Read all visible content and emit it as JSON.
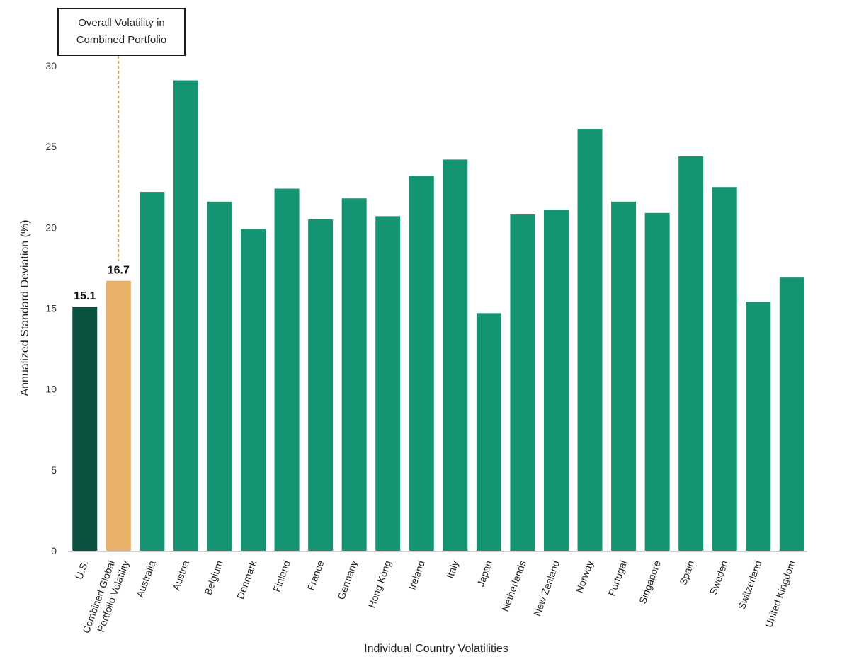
{
  "colors": {
    "us": "#0b5340",
    "combined": "#e8b169",
    "country": "#159473",
    "callout_line": "#e2a75c",
    "axis": "#cfcfcf"
  },
  "callout": {
    "text": "Overall Volatility in Combined Portfolio"
  },
  "chart_data": {
    "type": "bar",
    "title": "",
    "xlabel": "Individual Country Volatilities",
    "ylabel": "Annualized Standard Deviation (%)",
    "ylim": [
      0,
      30
    ],
    "yticks": [
      0,
      5,
      10,
      15,
      20,
      25,
      30
    ],
    "grid": false,
    "categories": [
      "U.S.",
      "Combined Global Portfolio Volatility",
      "Australia",
      "Austria",
      "Belgium",
      "Denmark",
      "Finland",
      "France",
      "Germany",
      "Hong Kong",
      "Ireland",
      "Italy",
      "Japan",
      "Netherlands",
      "New Zealand",
      "Norway",
      "Portugal",
      "Singapore",
      "Spain",
      "Sweden",
      "Switzerland",
      "United Kingdom"
    ],
    "tick_lines": [
      [
        "U.S."
      ],
      [
        "Combined Global",
        "Portfolio Volatility"
      ],
      [
        "Australia"
      ],
      [
        "Austria"
      ],
      [
        "Belgium"
      ],
      [
        "Denmark"
      ],
      [
        "Finland"
      ],
      [
        "France"
      ],
      [
        "Germany"
      ],
      [
        "Hong Kong"
      ],
      [
        "Ireland"
      ],
      [
        "Italy"
      ],
      [
        "Japan"
      ],
      [
        "Netherlands"
      ],
      [
        "New Zealand"
      ],
      [
        "Norway"
      ],
      [
        "Portugal"
      ],
      [
        "Singapore"
      ],
      [
        "Spain"
      ],
      [
        "Sweden"
      ],
      [
        "Switzerland"
      ],
      [
        "United Kingdom"
      ]
    ],
    "values": [
      15.1,
      16.7,
      22.2,
      29.1,
      21.6,
      19.9,
      22.4,
      20.5,
      21.8,
      20.7,
      23.2,
      24.2,
      14.7,
      20.8,
      21.1,
      26.1,
      21.6,
      20.9,
      24.4,
      22.5,
      15.4,
      16.9
    ],
    "data_labels": [
      {
        "index": 0,
        "text": "15.1"
      },
      {
        "index": 1,
        "text": "16.7"
      }
    ]
  }
}
